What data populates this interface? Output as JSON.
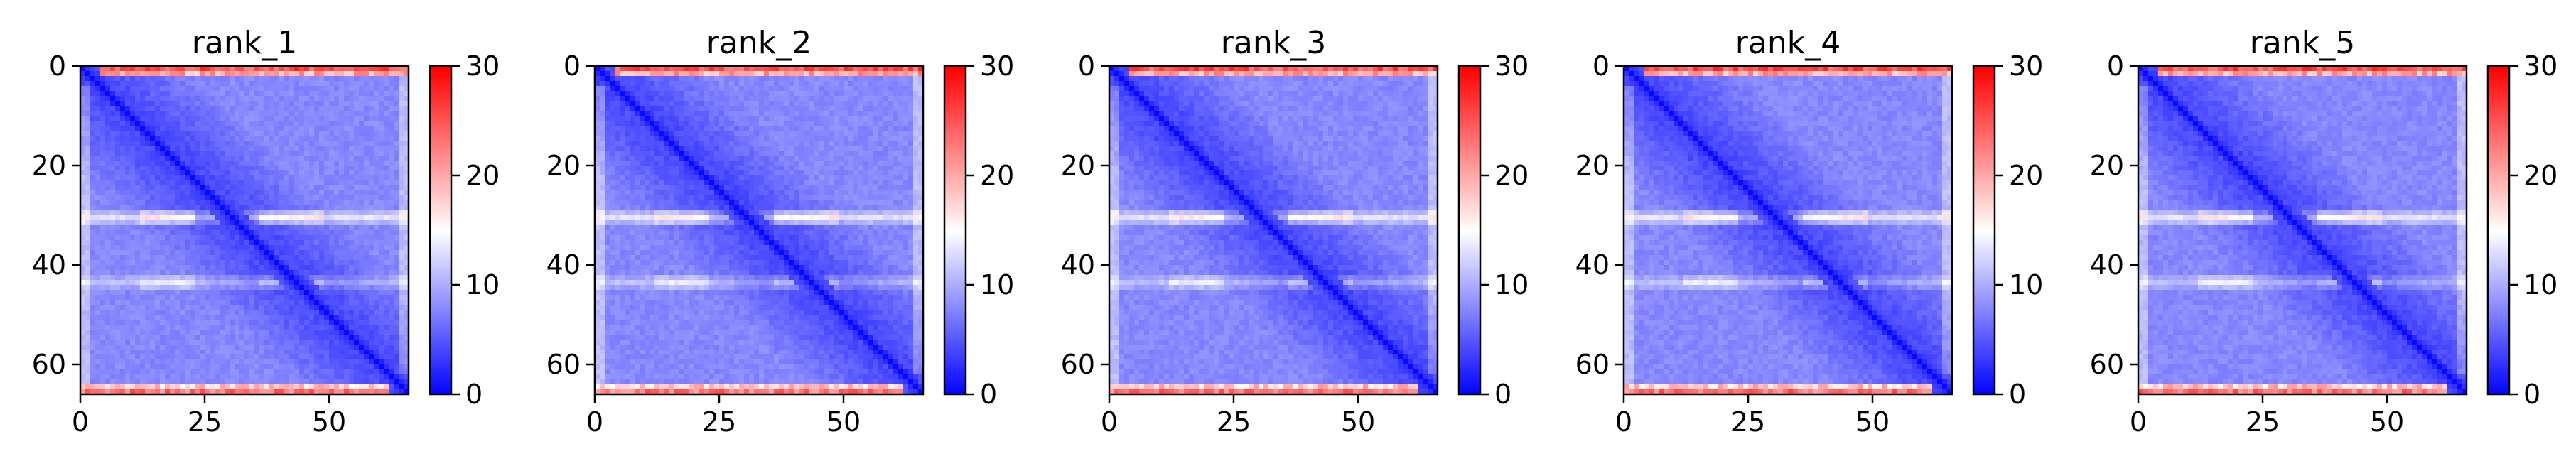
{
  "chart_data": [
    {
      "type": "heatmap",
      "title": "rank_1",
      "size": 66,
      "xlim": [
        0,
        66
      ],
      "ylim": [
        66,
        0
      ],
      "xticks": [
        0,
        25,
        50
      ],
      "yticks": [
        0,
        20,
        40,
        60
      ],
      "colorbar": {
        "min": 0,
        "max": 30,
        "ticks": [
          0,
          10,
          20,
          30
        ],
        "colormap": "bwr"
      },
      "features": {
        "band_rows": [
          30,
          43
        ],
        "high_edge_rows": [
          0,
          1,
          64,
          65
        ],
        "diagonal": "low"
      }
    },
    {
      "type": "heatmap",
      "title": "rank_2",
      "size": 66,
      "xlim": [
        0,
        66
      ],
      "ylim": [
        66,
        0
      ],
      "xticks": [
        0,
        25,
        50
      ],
      "yticks": [
        0,
        20,
        40,
        60
      ],
      "colorbar": {
        "min": 0,
        "max": 30,
        "ticks": [
          0,
          10,
          20,
          30
        ],
        "colormap": "bwr"
      },
      "features": {
        "band_rows": [
          30,
          43
        ],
        "high_edge_rows": [
          0,
          1,
          64,
          65
        ],
        "diagonal": "low"
      }
    },
    {
      "type": "heatmap",
      "title": "rank_3",
      "size": 66,
      "xlim": [
        0,
        66
      ],
      "ylim": [
        66,
        0
      ],
      "xticks": [
        0,
        25,
        50
      ],
      "yticks": [
        0,
        20,
        40,
        60
      ],
      "colorbar": {
        "min": 0,
        "max": 30,
        "ticks": [
          0,
          10,
          20,
          30
        ],
        "colormap": "bwr"
      },
      "features": {
        "band_rows": [
          30,
          43
        ],
        "high_edge_rows": [
          0,
          1,
          64,
          65
        ],
        "diagonal": "low"
      }
    },
    {
      "type": "heatmap",
      "title": "rank_4",
      "size": 66,
      "xlim": [
        0,
        66
      ],
      "ylim": [
        66,
        0
      ],
      "xticks": [
        0,
        25,
        50
      ],
      "yticks": [
        0,
        20,
        40,
        60
      ],
      "colorbar": {
        "min": 0,
        "max": 30,
        "ticks": [
          0,
          10,
          20,
          30
        ],
        "colormap": "bwr"
      },
      "features": {
        "band_rows": [
          30,
          43
        ],
        "high_edge_rows": [
          0,
          1,
          64,
          65
        ],
        "diagonal": "low"
      }
    },
    {
      "type": "heatmap",
      "title": "rank_5",
      "size": 66,
      "xlim": [
        0,
        66
      ],
      "ylim": [
        66,
        0
      ],
      "xticks": [
        0,
        25,
        50
      ],
      "yticks": [
        0,
        20,
        40,
        60
      ],
      "colorbar": {
        "min": 0,
        "max": 30,
        "ticks": [
          0,
          10,
          20,
          30
        ],
        "colormap": "bwr"
      },
      "features": {
        "band_rows": [
          30,
          43
        ],
        "high_edge_rows": [
          0,
          1,
          64,
          65
        ],
        "diagonal": "low"
      }
    }
  ]
}
